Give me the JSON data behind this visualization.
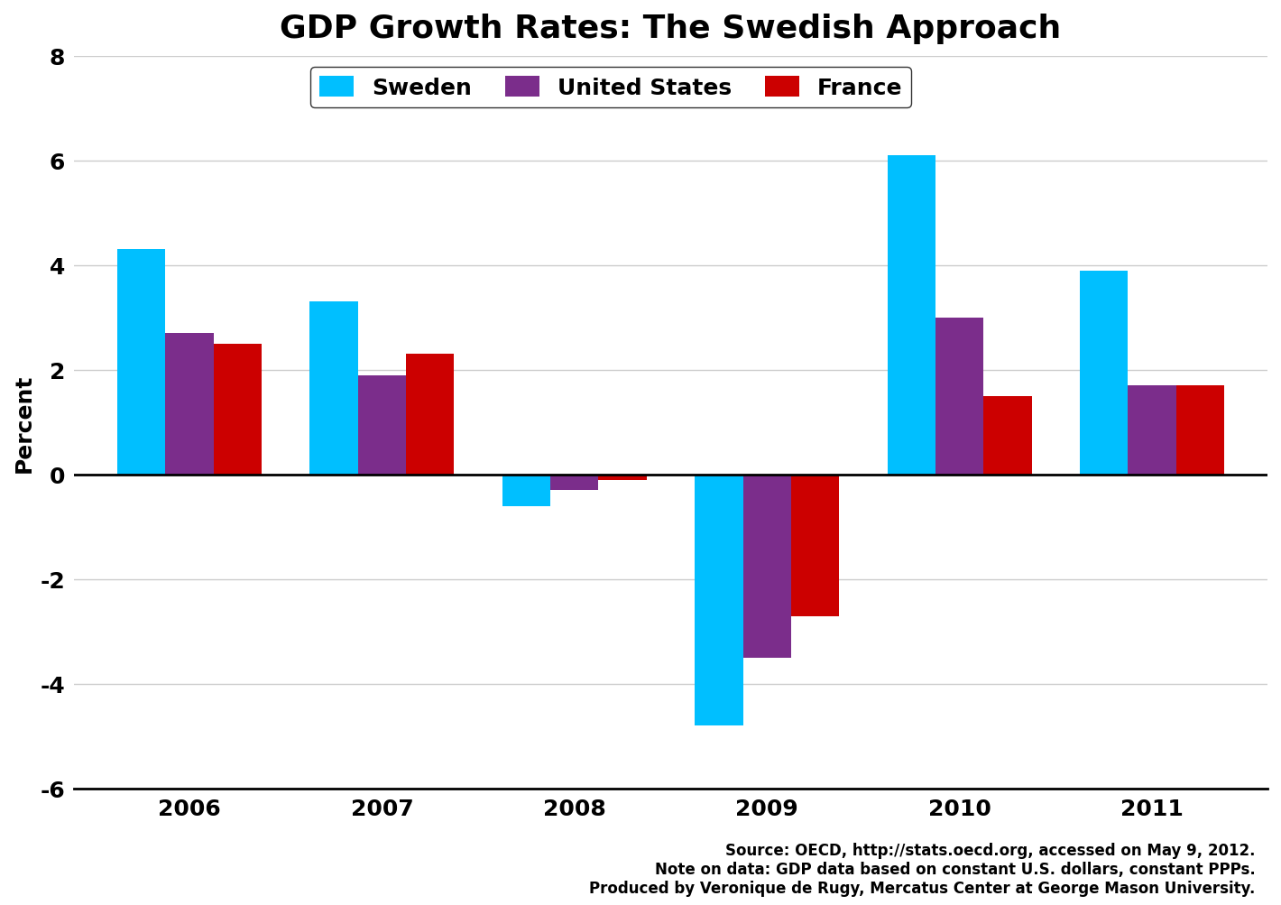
{
  "title": "GDP Growth Rates: The Swedish Approach",
  "ylabel": "Percent",
  "years": [
    "2006",
    "2007",
    "2008",
    "2009",
    "2010",
    "2011"
  ],
  "sweden": [
    4.3,
    3.3,
    -0.6,
    -4.8,
    6.1,
    3.9
  ],
  "united_states": [
    2.7,
    1.9,
    -0.3,
    -3.5,
    3.0,
    1.7
  ],
  "france": [
    2.5,
    2.3,
    -0.1,
    -2.7,
    1.5,
    1.7
  ],
  "colors": {
    "sweden": "#00BFFF",
    "united_states": "#7B2D8B",
    "france": "#CC0000"
  },
  "ylim": [
    -6,
    8
  ],
  "yticks": [
    -6,
    -4,
    -2,
    0,
    2,
    4,
    6,
    8
  ],
  "bar_width": 0.25,
  "footnote": "Source: OECD, http://stats.oecd.org, accessed on May 9, 2012.\nNote on data: GDP data based on constant U.S. dollars, constant PPPs.\nProduced by Veronique de Rugy, Mercatus Center at George Mason University.",
  "background_color": "#FFFFFF",
  "grid_color": "#CCCCCC",
  "title_fontsize": 26,
  "axis_label_fontsize": 18,
  "tick_fontsize": 18,
  "legend_fontsize": 18,
  "footnote_fontsize": 12
}
